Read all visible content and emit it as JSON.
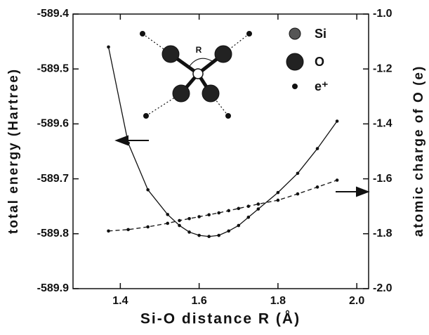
{
  "chart_data": {
    "type": "line",
    "x_label": "Si-O distance  R  (Å)",
    "y_label": "total energy  (Hartree)",
    "y2_label": "atomic charge of O (e)",
    "xlim": [
      1.28,
      2.03
    ],
    "xticks": [
      1.4,
      1.6,
      1.8,
      {
        "value": 2,
        "label": "2.0"
      }
    ],
    "ylim": [
      -589.9,
      -589.4
    ],
    "yticks": [
      -589.9,
      -589.8,
      -589.7,
      -589.6,
      -589.5,
      -589.4
    ],
    "y2lim": [
      -2,
      -1
    ],
    "y2ticks": [
      {
        "value": -2,
        "label": "-2.0"
      },
      -1.8,
      -1.6,
      -1.4,
      -1.2,
      {
        "value": -1,
        "label": "-1.0"
      }
    ],
    "x": [
      1.37,
      1.42,
      1.47,
      1.52,
      1.55,
      1.575,
      1.6,
      1.625,
      1.65,
      1.675,
      1.7,
      1.725,
      1.75,
      1.8,
      1.85,
      1.9,
      1.95
    ],
    "series": [
      {
        "color": "#111111",
        "dash": false,
        "values": [
          -589.46,
          -589.635,
          -589.72,
          -589.765,
          -589.785,
          -589.797,
          -589.803,
          -589.805,
          -589.803,
          -589.795,
          -589.785,
          -589.77,
          -589.755,
          -589.725,
          -589.69,
          -589.645,
          -589.595
        ]
      },
      {
        "color": "#111111",
        "dash": true,
        "axis": "y2",
        "values": [
          -1.79,
          -1.785,
          -1.775,
          -1.762,
          -1.752,
          -1.745,
          -1.738,
          -1.731,
          -1.724,
          -1.716,
          -1.708,
          -1.7,
          -1.692,
          -1.678,
          -1.655,
          -1.63,
          -1.605
        ]
      }
    ],
    "inset_label": "R",
    "legend": [
      "Si",
      "O",
      "e⁺"
    ]
  }
}
